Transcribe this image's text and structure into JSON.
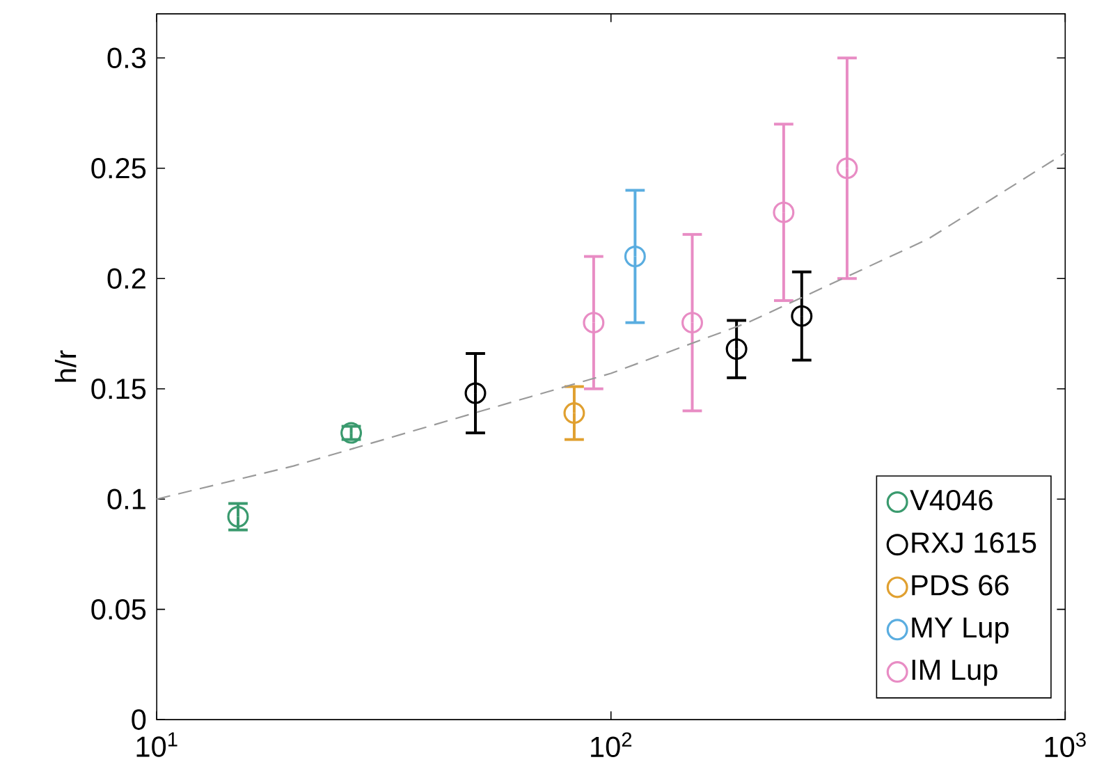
{
  "chart_data": {
    "type": "scatter",
    "ylabel": "h/r",
    "log": "x",
    "xlim": [
      10,
      1000
    ],
    "ylim": [
      0,
      0.32
    ],
    "xticks": [
      {
        "value": 10,
        "label": "10$^{1}$"
      },
      {
        "value": 100,
        "label": "10$^{2}$"
      },
      {
        "value": 1000,
        "label": "10$^{3}$"
      }
    ],
    "yticks": [
      0,
      0.05,
      0.1,
      0.15,
      0.2,
      0.25,
      0.3
    ],
    "marker": "circle",
    "legend": "bottom right",
    "grid": false,
    "series": [
      {
        "name": "V4046",
        "color": "#3a9a6e",
        "x": [
          15.1,
          26.8
        ],
        "values": [
          0.092,
          0.13
        ],
        "errors": [
          0.006,
          0.003
        ]
      },
      {
        "name": "RXJ 1615",
        "color": "#000000",
        "x": [
          50.3,
          189,
          263
        ],
        "values": [
          0.148,
          0.168,
          0.183
        ],
        "errors": [
          0.018,
          0.013,
          0.02
        ]
      },
      {
        "name": "PDS 66",
        "color": "#e0a030",
        "x": [
          83
        ],
        "values": [
          0.139
        ],
        "errors": [
          0.012
        ]
      },
      {
        "name": "MY Lup",
        "color": "#5aade0",
        "x": [
          113
        ],
        "values": [
          0.21
        ],
        "errors": [
          0.03
        ]
      },
      {
        "name": "IM Lup",
        "color": "#e88cc4",
        "x": [
          91.6,
          151,
          240,
          331
        ],
        "values": [
          0.18,
          0.18,
          0.23,
          0.25
        ],
        "errors": [
          0.03,
          0.04,
          0.04,
          0.05
        ]
      },
      {
        "type": "line",
        "line_style": "dashed",
        "marker": "none",
        "color": "#9a9a9a",
        "x": [
          10,
          20,
          50,
          100,
          200,
          500,
          1000
        ],
        "values": [
          0.1,
          0.115,
          0.139,
          0.157,
          0.18,
          0.218,
          0.257
        ]
      }
    ]
  }
}
